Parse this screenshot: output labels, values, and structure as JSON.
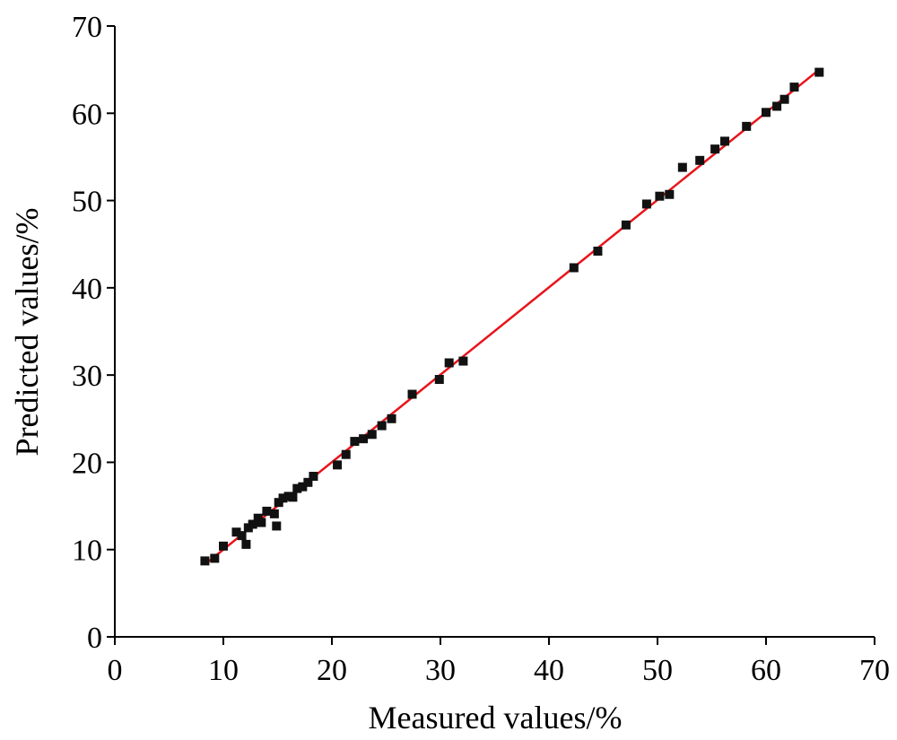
{
  "chart_data": {
    "type": "scatter",
    "xlabel": "Measured values/%",
    "ylabel": "Predicted values/%",
    "xlim": [
      0,
      70
    ],
    "ylim": [
      0,
      70
    ],
    "xticks": [
      "0",
      "10",
      "20",
      "30",
      "40",
      "50",
      "60",
      "70"
    ],
    "yticks": [
      "0",
      "10",
      "20",
      "30",
      "40",
      "50",
      "60",
      "70"
    ],
    "grid": false,
    "series": [
      {
        "color": "#111111",
        "marker": "square",
        "points": [
          [
            8.3,
            8.7
          ],
          [
            9.2,
            9.0
          ],
          [
            10.0,
            10.4
          ],
          [
            11.2,
            12.0
          ],
          [
            11.7,
            11.6
          ],
          [
            12.1,
            10.6
          ],
          [
            12.3,
            12.5
          ],
          [
            12.7,
            12.9
          ],
          [
            13.2,
            13.6
          ],
          [
            13.5,
            13.1
          ],
          [
            14.0,
            14.4
          ],
          [
            14.7,
            14.1
          ],
          [
            14.9,
            12.7
          ],
          [
            15.1,
            15.4
          ],
          [
            15.5,
            15.9
          ],
          [
            16.0,
            16.1
          ],
          [
            16.4,
            16.0
          ],
          [
            16.8,
            17.0
          ],
          [
            17.3,
            17.2
          ],
          [
            17.8,
            17.7
          ],
          [
            18.3,
            18.4
          ],
          [
            20.5,
            19.7
          ],
          [
            21.3,
            20.9
          ],
          [
            22.1,
            22.4
          ],
          [
            22.9,
            22.7
          ],
          [
            23.7,
            23.2
          ],
          [
            24.6,
            24.2
          ],
          [
            25.5,
            25.0
          ],
          [
            27.4,
            27.8
          ],
          [
            29.9,
            29.5
          ],
          [
            30.8,
            31.4
          ],
          [
            32.1,
            31.6
          ],
          [
            42.3,
            42.3
          ],
          [
            44.5,
            44.2
          ],
          [
            47.1,
            47.2
          ],
          [
            49.0,
            49.6
          ],
          [
            50.2,
            50.5
          ],
          [
            51.1,
            50.7
          ],
          [
            52.3,
            53.8
          ],
          [
            53.9,
            54.6
          ],
          [
            55.3,
            55.9
          ],
          [
            56.2,
            56.8
          ],
          [
            58.2,
            58.5
          ],
          [
            60.0,
            60.1
          ],
          [
            61.0,
            60.8
          ],
          [
            61.7,
            61.6
          ],
          [
            62.6,
            63.0
          ],
          [
            64.9,
            64.7
          ]
        ]
      }
    ],
    "fit_line": {
      "color": "#e8141b",
      "from": [
        8.3,
        8.3
      ],
      "to": [
        64.9,
        65.0
      ]
    }
  }
}
